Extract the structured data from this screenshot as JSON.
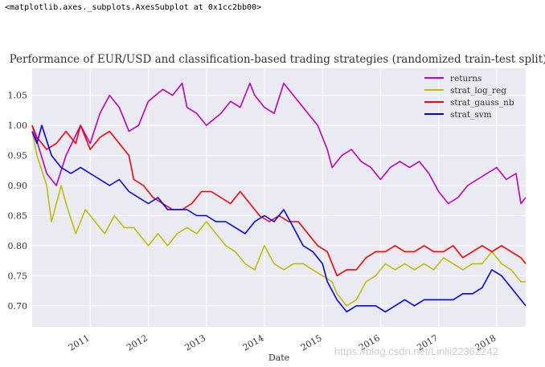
{
  "repr_text": "<matplotlib.axes._subplots.AxesSubplot at 0x1cc2bb00>",
  "watermark": "https://blog.csdn.net/Linlii22362242",
  "chart_data": {
    "type": "line",
    "title": "Performance of EUR/USD and classification-based trading strategies (randomized train-test split)",
    "xlabel": "Date",
    "ylabel": "",
    "x_ticks": [
      "2011",
      "2012",
      "2013",
      "2014",
      "2015",
      "2016",
      "2017",
      "2018"
    ],
    "y_ticks": [
      "0.70",
      "0.75",
      "0.80",
      "0.85",
      "0.90",
      "0.95",
      "1.00",
      "1.05"
    ],
    "xlim": [
      "2010-01-01",
      "2018-07-01"
    ],
    "ylim": [
      0.665,
      1.095
    ],
    "grid": true,
    "legend_position": "top-right",
    "series": [
      {
        "name": "returns",
        "color": "#bf00bf",
        "points": [
          [
            "2010-01-01",
            1.0
          ],
          [
            "2010-04-01",
            0.92
          ],
          [
            "2010-06-01",
            0.9
          ],
          [
            "2010-08-01",
            0.95
          ],
          [
            "2010-11-01",
            1.0
          ],
          [
            "2011-01-01",
            0.97
          ],
          [
            "2011-03-01",
            1.02
          ],
          [
            "2011-05-01",
            1.05
          ],
          [
            "2011-07-01",
            1.03
          ],
          [
            "2011-09-01",
            0.99
          ],
          [
            "2011-11-01",
            1.0
          ],
          [
            "2012-01-01",
            1.04
          ],
          [
            "2012-04-01",
            1.06
          ],
          [
            "2012-06-01",
            1.05
          ],
          [
            "2012-08-01",
            1.07
          ],
          [
            "2012-09-01",
            1.03
          ],
          [
            "2012-11-01",
            1.02
          ],
          [
            "2013-01-01",
            1.0
          ],
          [
            "2013-04-01",
            1.02
          ],
          [
            "2013-06-01",
            1.04
          ],
          [
            "2013-08-01",
            1.03
          ],
          [
            "2013-10-01",
            1.07
          ],
          [
            "2013-11-01",
            1.05
          ],
          [
            "2014-01-01",
            1.03
          ],
          [
            "2014-03-01",
            1.02
          ],
          [
            "2014-05-01",
            1.07
          ],
          [
            "2014-06-01",
            1.06
          ],
          [
            "2014-08-01",
            1.04
          ],
          [
            "2014-10-01",
            1.02
          ],
          [
            "2014-12-01",
            1.0
          ],
          [
            "2015-02-01",
            0.96
          ],
          [
            "2015-03-01",
            0.93
          ],
          [
            "2015-05-01",
            0.95
          ],
          [
            "2015-07-01",
            0.96
          ],
          [
            "2015-09-01",
            0.94
          ],
          [
            "2015-11-01",
            0.93
          ],
          [
            "2016-01-01",
            0.91
          ],
          [
            "2016-03-01",
            0.93
          ],
          [
            "2016-05-01",
            0.94
          ],
          [
            "2016-07-01",
            0.93
          ],
          [
            "2016-09-01",
            0.94
          ],
          [
            "2016-11-01",
            0.92
          ],
          [
            "2017-01-01",
            0.89
          ],
          [
            "2017-03-01",
            0.87
          ],
          [
            "2017-05-01",
            0.88
          ],
          [
            "2017-07-01",
            0.9
          ],
          [
            "2017-09-01",
            0.91
          ],
          [
            "2017-11-01",
            0.92
          ],
          [
            "2018-01-01",
            0.93
          ],
          [
            "2018-03-01",
            0.91
          ],
          [
            "2018-05-01",
            0.92
          ],
          [
            "2018-06-01",
            0.87
          ],
          [
            "2018-07-01",
            0.88
          ]
        ]
      },
      {
        "name": "strat_log_reg",
        "color": "#bfbf00",
        "points": [
          [
            "2010-01-01",
            0.99
          ],
          [
            "2010-02-01",
            0.95
          ],
          [
            "2010-04-01",
            0.9
          ],
          [
            "2010-05-01",
            0.84
          ],
          [
            "2010-06-01",
            0.87
          ],
          [
            "2010-07-01",
            0.9
          ],
          [
            "2010-08-01",
            0.87
          ],
          [
            "2010-10-01",
            0.82
          ],
          [
            "2010-12-01",
            0.86
          ],
          [
            "2011-02-01",
            0.84
          ],
          [
            "2011-04-01",
            0.82
          ],
          [
            "2011-06-01",
            0.85
          ],
          [
            "2011-08-01",
            0.83
          ],
          [
            "2011-10-01",
            0.83
          ],
          [
            "2012-01-01",
            0.8
          ],
          [
            "2012-03-01",
            0.82
          ],
          [
            "2012-05-01",
            0.8
          ],
          [
            "2012-07-01",
            0.82
          ],
          [
            "2012-09-01",
            0.83
          ],
          [
            "2012-11-01",
            0.82
          ],
          [
            "2013-01-01",
            0.84
          ],
          [
            "2013-03-01",
            0.82
          ],
          [
            "2013-05-01",
            0.8
          ],
          [
            "2013-07-01",
            0.79
          ],
          [
            "2013-09-01",
            0.77
          ],
          [
            "2013-11-01",
            0.76
          ],
          [
            "2014-01-01",
            0.8
          ],
          [
            "2014-03-01",
            0.77
          ],
          [
            "2014-05-01",
            0.76
          ],
          [
            "2014-07-01",
            0.77
          ],
          [
            "2014-09-01",
            0.77
          ],
          [
            "2014-11-01",
            0.76
          ],
          [
            "2015-01-01",
            0.75
          ],
          [
            "2015-03-01",
            0.74
          ],
          [
            "2015-04-01",
            0.72
          ],
          [
            "2015-06-01",
            0.7
          ],
          [
            "2015-08-01",
            0.71
          ],
          [
            "2015-10-01",
            0.74
          ],
          [
            "2015-12-01",
            0.75
          ],
          [
            "2016-02-01",
            0.77
          ],
          [
            "2016-04-01",
            0.76
          ],
          [
            "2016-06-01",
            0.77
          ],
          [
            "2016-08-01",
            0.76
          ],
          [
            "2016-10-01",
            0.77
          ],
          [
            "2016-12-01",
            0.76
          ],
          [
            "2017-02-01",
            0.78
          ],
          [
            "2017-04-01",
            0.77
          ],
          [
            "2017-06-01",
            0.76
          ],
          [
            "2017-08-01",
            0.77
          ],
          [
            "2017-10-01",
            0.77
          ],
          [
            "2017-12-01",
            0.79
          ],
          [
            "2018-02-01",
            0.77
          ],
          [
            "2018-04-01",
            0.76
          ],
          [
            "2018-06-01",
            0.74
          ],
          [
            "2018-07-01",
            0.74
          ]
        ]
      },
      {
        "name": "strat_gauss_nb",
        "color": "#ff0000",
        "points": [
          [
            "2010-01-01",
            1.0
          ],
          [
            "2010-02-01",
            0.98
          ],
          [
            "2010-04-01",
            0.96
          ],
          [
            "2010-06-01",
            0.97
          ],
          [
            "2010-08-01",
            0.99
          ],
          [
            "2010-10-01",
            0.97
          ],
          [
            "2010-11-01",
            1.0
          ],
          [
            "2011-01-01",
            0.96
          ],
          [
            "2011-03-01",
            0.98
          ],
          [
            "2011-05-01",
            0.99
          ],
          [
            "2011-07-01",
            0.97
          ],
          [
            "2011-09-01",
            0.95
          ],
          [
            "2011-10-01",
            0.91
          ],
          [
            "2011-12-01",
            0.9
          ],
          [
            "2012-02-01",
            0.88
          ],
          [
            "2012-04-01",
            0.87
          ],
          [
            "2012-06-01",
            0.86
          ],
          [
            "2012-08-01",
            0.86
          ],
          [
            "2012-10-01",
            0.87
          ],
          [
            "2012-12-01",
            0.89
          ],
          [
            "2013-02-01",
            0.89
          ],
          [
            "2013-04-01",
            0.88
          ],
          [
            "2013-06-01",
            0.87
          ],
          [
            "2013-08-01",
            0.89
          ],
          [
            "2013-10-01",
            0.87
          ],
          [
            "2013-12-01",
            0.85
          ],
          [
            "2014-02-01",
            0.84
          ],
          [
            "2014-04-01",
            0.85
          ],
          [
            "2014-06-01",
            0.84
          ],
          [
            "2014-08-01",
            0.84
          ],
          [
            "2014-10-01",
            0.82
          ],
          [
            "2014-12-01",
            0.8
          ],
          [
            "2015-02-01",
            0.79
          ],
          [
            "2015-04-01",
            0.75
          ],
          [
            "2015-06-01",
            0.76
          ],
          [
            "2015-08-01",
            0.76
          ],
          [
            "2015-10-01",
            0.78
          ],
          [
            "2015-12-01",
            0.79
          ],
          [
            "2016-02-01",
            0.79
          ],
          [
            "2016-04-01",
            0.8
          ],
          [
            "2016-06-01",
            0.79
          ],
          [
            "2016-08-01",
            0.79
          ],
          [
            "2016-10-01",
            0.8
          ],
          [
            "2016-12-01",
            0.79
          ],
          [
            "2017-02-01",
            0.79
          ],
          [
            "2017-04-01",
            0.8
          ],
          [
            "2017-06-01",
            0.78
          ],
          [
            "2017-08-01",
            0.79
          ],
          [
            "2017-10-01",
            0.8
          ],
          [
            "2017-12-01",
            0.79
          ],
          [
            "2018-02-01",
            0.8
          ],
          [
            "2018-04-01",
            0.79
          ],
          [
            "2018-06-01",
            0.78
          ],
          [
            "2018-07-01",
            0.77
          ]
        ]
      },
      {
        "name": "strat_svm",
        "color": "#0000ff",
        "points": [
          [
            "2010-01-01",
            0.99
          ],
          [
            "2010-02-01",
            0.97
          ],
          [
            "2010-03-01",
            1.0
          ],
          [
            "2010-05-01",
            0.95
          ],
          [
            "2010-07-01",
            0.93
          ],
          [
            "2010-09-01",
            0.92
          ],
          [
            "2010-11-01",
            0.93
          ],
          [
            "2011-01-01",
            0.92
          ],
          [
            "2011-03-01",
            0.91
          ],
          [
            "2011-05-01",
            0.9
          ],
          [
            "2011-07-01",
            0.91
          ],
          [
            "2011-09-01",
            0.89
          ],
          [
            "2011-11-01",
            0.88
          ],
          [
            "2012-01-01",
            0.87
          ],
          [
            "2012-03-01",
            0.88
          ],
          [
            "2012-05-01",
            0.86
          ],
          [
            "2012-07-01",
            0.86
          ],
          [
            "2012-09-01",
            0.86
          ],
          [
            "2012-11-01",
            0.85
          ],
          [
            "2013-01-01",
            0.85
          ],
          [
            "2013-03-01",
            0.84
          ],
          [
            "2013-05-01",
            0.84
          ],
          [
            "2013-07-01",
            0.83
          ],
          [
            "2013-09-01",
            0.82
          ],
          [
            "2013-11-01",
            0.84
          ],
          [
            "2014-01-01",
            0.85
          ],
          [
            "2014-03-01",
            0.84
          ],
          [
            "2014-05-01",
            0.86
          ],
          [
            "2014-07-01",
            0.83
          ],
          [
            "2014-09-01",
            0.8
          ],
          [
            "2014-11-01",
            0.79
          ],
          [
            "2015-01-01",
            0.77
          ],
          [
            "2015-02-01",
            0.74
          ],
          [
            "2015-04-01",
            0.71
          ],
          [
            "2015-06-01",
            0.69
          ],
          [
            "2015-08-01",
            0.7
          ],
          [
            "2015-10-01",
            0.7
          ],
          [
            "2015-12-01",
            0.7
          ],
          [
            "2016-02-01",
            0.69
          ],
          [
            "2016-04-01",
            0.7
          ],
          [
            "2016-06-01",
            0.71
          ],
          [
            "2016-08-01",
            0.7
          ],
          [
            "2016-10-01",
            0.71
          ],
          [
            "2016-12-01",
            0.71
          ],
          [
            "2017-02-01",
            0.71
          ],
          [
            "2017-04-01",
            0.71
          ],
          [
            "2017-06-01",
            0.72
          ],
          [
            "2017-08-01",
            0.72
          ],
          [
            "2017-10-01",
            0.73
          ],
          [
            "2017-12-01",
            0.76
          ],
          [
            "2018-02-01",
            0.75
          ],
          [
            "2018-04-01",
            0.73
          ],
          [
            "2018-06-01",
            0.71
          ],
          [
            "2018-07-01",
            0.7
          ]
        ]
      }
    ]
  }
}
